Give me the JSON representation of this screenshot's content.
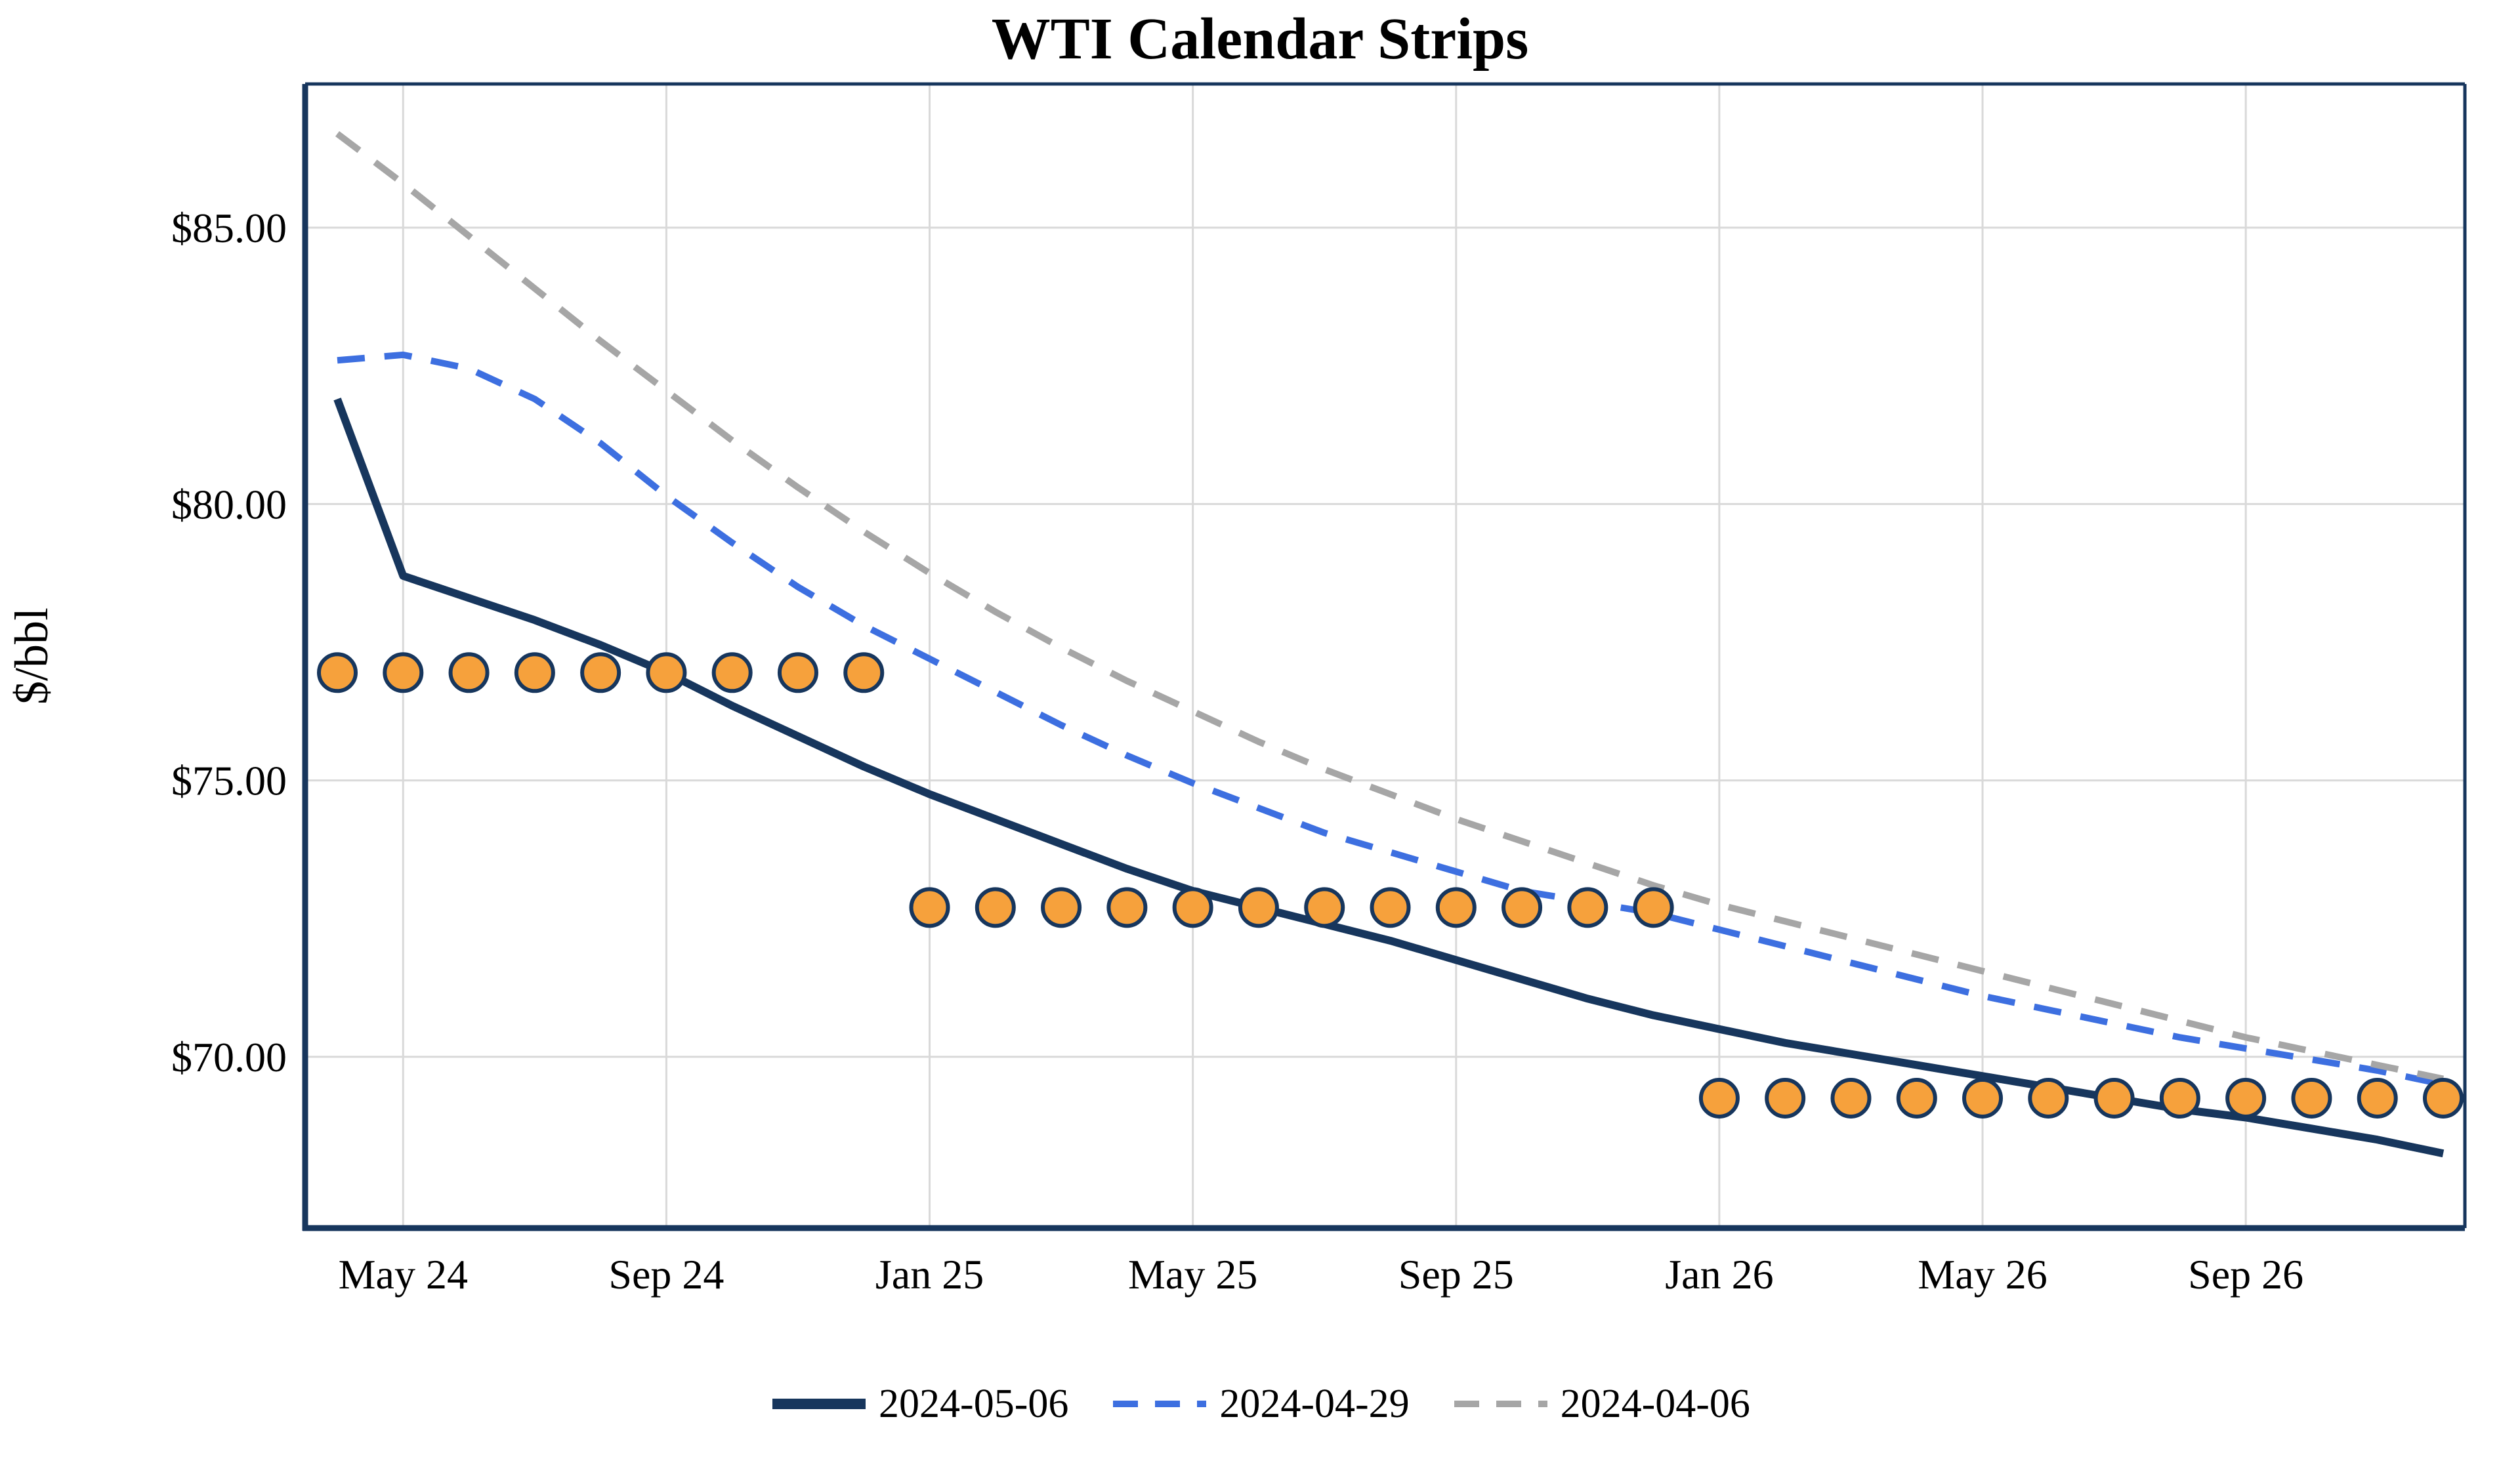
{
  "chart_data": {
    "type": "line",
    "title": "WTI Calendar Strips",
    "xlabel": "",
    "ylabel": "$/bbl",
    "background": "#ffffff",
    "grid": true,
    "grid_color": "#d9d9d9",
    "spine_color": "#17365d",
    "text_color": "#000000",
    "legend_position": "bottom",
    "x_count": 33,
    "x_tick_indices": [
      1,
      5,
      9,
      13,
      17,
      21,
      25,
      29
    ],
    "x_tick_labels": [
      "May 24",
      "Sep 24",
      "Jan 25",
      "May 25",
      "Sep 25",
      "Jan 26",
      "May 26",
      "Sep 26"
    ],
    "ylim": [
      66.9,
      87.6
    ],
    "y_ticks": [
      70,
      75,
      80,
      85
    ],
    "y_tick_labels": [
      "$70.00",
      "$75.00",
      "$80.00",
      "$85.00"
    ],
    "series": [
      {
        "name": "2024-05-06",
        "style": "solid",
        "color": "#17365d",
        "values": [
          81.9,
          78.7,
          78.3,
          77.9,
          77.45,
          76.95,
          76.35,
          75.8,
          75.25,
          74.75,
          74.3,
          73.85,
          73.4,
          73.0,
          72.7,
          72.4,
          72.1,
          71.75,
          71.4,
          71.05,
          70.75,
          70.5,
          70.25,
          70.05,
          69.85,
          69.65,
          69.45,
          69.25,
          69.05,
          68.9,
          68.7,
          68.5,
          68.25
        ]
      },
      {
        "name": "2024-04-29",
        "style": "dashed",
        "color": "#3d6fe0",
        "values": [
          82.6,
          82.7,
          82.45,
          81.9,
          81.1,
          80.15,
          79.3,
          78.5,
          77.8,
          77.2,
          76.6,
          76.0,
          75.45,
          74.95,
          74.5,
          74.05,
          73.7,
          73.35,
          73.0,
          72.8,
          72.6,
          72.3,
          72.0,
          71.7,
          71.4,
          71.1,
          70.85,
          70.6,
          70.35,
          70.15,
          69.95,
          69.75,
          69.5
        ]
      },
      {
        "name": "2024-04-06",
        "style": "dashed",
        "color": "#a6a6a6",
        "values": [
          86.7,
          85.8,
          84.85,
          83.9,
          82.95,
          82.05,
          81.15,
          80.3,
          79.5,
          78.75,
          78.05,
          77.4,
          76.8,
          76.25,
          75.7,
          75.2,
          74.75,
          74.3,
          73.9,
          73.5,
          73.1,
          72.75,
          72.45,
          72.15,
          71.85,
          71.55,
          71.25,
          70.95,
          70.65,
          70.35,
          70.1,
          69.85,
          69.6
        ]
      }
    ],
    "strip_markers": {
      "fill": "#f6a13c",
      "stroke": "#17365d",
      "strips": [
        {
          "start_index": 0,
          "end_index": 8,
          "value": 76.95
        },
        {
          "start_index": 9,
          "end_index": 20,
          "value": 72.7
        },
        {
          "start_index": 21,
          "end_index": 32,
          "value": 69.25
        }
      ]
    },
    "legend": [
      "2024-05-06",
      "2024-04-29",
      "2024-04-06"
    ]
  }
}
